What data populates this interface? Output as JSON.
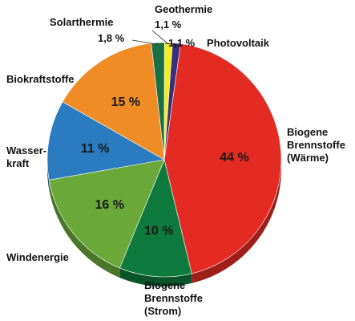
{
  "chart_data": {
    "type": "pie",
    "title": "",
    "slices": [
      {
        "label": "Biogene Brennstoffe (Wärme)",
        "value": 44,
        "value_label": "44 %",
        "color": "#e32b24"
      },
      {
        "label": "Biogene Brennstoffe (Strom)",
        "value": 10,
        "value_label": "10 %",
        "color": "#0f7a3e"
      },
      {
        "label": "Windenergie",
        "value": 16,
        "value_label": "16 %",
        "color": "#6aa83a"
      },
      {
        "label": "Wasserkraft",
        "value": 11,
        "value_label": "11 %",
        "color": "#2a7bc0"
      },
      {
        "label": "Biokraftstoffe",
        "value": 15,
        "value_label": "15 %",
        "color": "#f08c25"
      },
      {
        "label": "Solarthermie",
        "value": 1.8,
        "value_label": "1,8 %",
        "color": "#1b6f45"
      },
      {
        "label": "Geothermie",
        "value": 1.1,
        "value_label": "1,1 %",
        "color": "#f2ee1e"
      },
      {
        "label": "Photovoltaik",
        "value": 1.1,
        "value_label": "1,1 %",
        "color": "#3b2f7c"
      }
    ]
  }
}
